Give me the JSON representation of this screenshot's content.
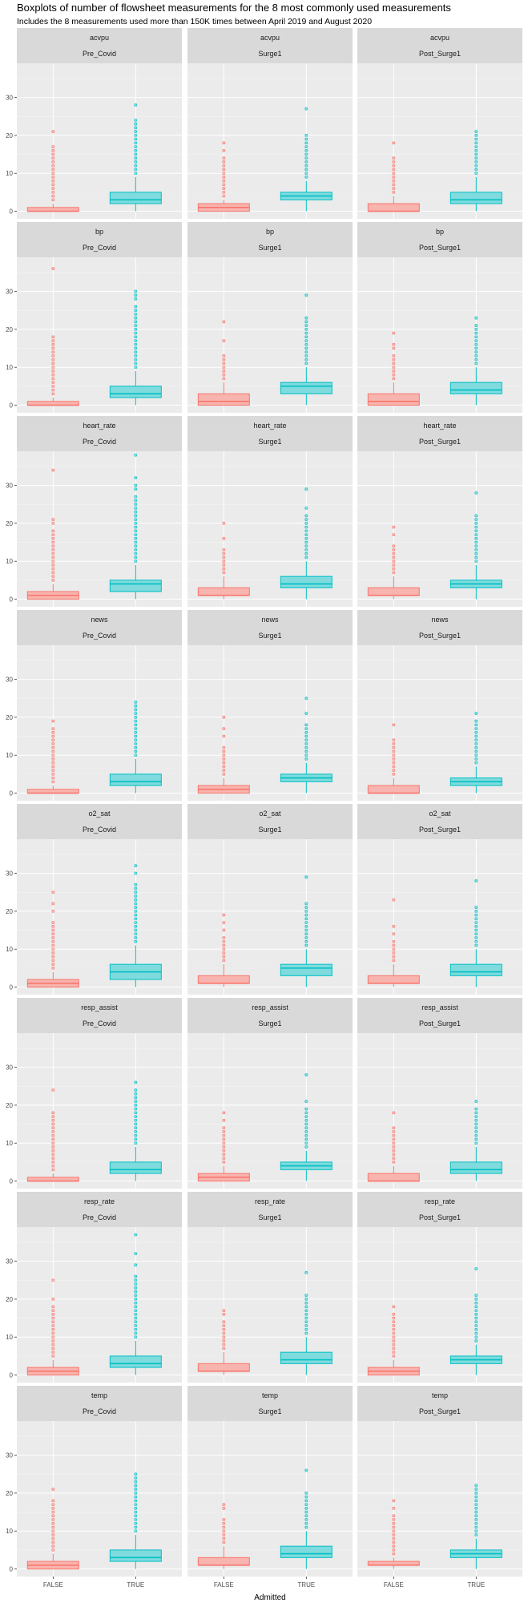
{
  "chart_data": {
    "type": "boxplot",
    "title": "Boxplots of number of flowsheet measurements for the 8 most commonly used measurements",
    "subtitle": "Includes the 8 measurements used more than 150K times between April 2019 and August 2020",
    "xlabel": "Admitted",
    "ylabel": "",
    "categories": [
      "FALSE",
      "TRUE"
    ],
    "y_ticks": [
      0,
      10,
      20,
      30
    ],
    "ylim": [
      -2,
      39
    ],
    "colors": {
      "FALSE": "#F8766D",
      "TRUE": "#00BFC4"
    },
    "facet_rows": [
      "acvpu",
      "bp",
      "heart_rate",
      "news",
      "o2_sat",
      "resp_assist",
      "resp_rate",
      "temp"
    ],
    "facet_cols": [
      "Pre_Covid",
      "Surge1",
      "Post_Surge1"
    ],
    "panels": [
      {
        "measurement": "acvpu",
        "period": "Pre_Covid",
        "false": [
          0,
          0,
          0,
          1,
          2
        ],
        "false_outliers": [
          3,
          4,
          5,
          6,
          7,
          8,
          9,
          10,
          11,
          12,
          13,
          14,
          15,
          16,
          17,
          21
        ],
        "true": [
          0,
          2,
          3,
          5,
          9
        ],
        "true_outliers": [
          10,
          11,
          12,
          13,
          14,
          15,
          16,
          17,
          18,
          19,
          20,
          21,
          22,
          23,
          24,
          28
        ]
      },
      {
        "measurement": "acvpu",
        "period": "Surge1",
        "false": [
          0,
          0,
          1,
          2,
          3
        ],
        "false_outliers": [
          4,
          5,
          6,
          7,
          8,
          9,
          10,
          11,
          12,
          13,
          14,
          16,
          18
        ],
        "true": [
          0,
          3,
          4,
          5,
          8
        ],
        "true_outliers": [
          9,
          10,
          11,
          12,
          13,
          14,
          15,
          16,
          17,
          18,
          19,
          20,
          27
        ]
      },
      {
        "measurement": "acvpu",
        "period": "Post_Surge1",
        "false": [
          0,
          0,
          0,
          2,
          4
        ],
        "false_outliers": [
          5,
          6,
          7,
          8,
          9,
          10,
          11,
          12,
          13,
          14,
          18
        ],
        "true": [
          0,
          2,
          3,
          5,
          9
        ],
        "true_outliers": [
          10,
          11,
          12,
          13,
          14,
          15,
          16,
          17,
          18,
          19,
          20,
          21
        ]
      },
      {
        "measurement": "bp",
        "period": "Pre_Covid",
        "false": [
          0,
          0,
          0,
          1,
          2
        ],
        "false_outliers": [
          3,
          4,
          5,
          6,
          7,
          8,
          9,
          10,
          11,
          12,
          13,
          14,
          15,
          16,
          17,
          18,
          36
        ],
        "true": [
          0,
          2,
          3,
          5,
          9
        ],
        "true_outliers": [
          10,
          11,
          12,
          13,
          14,
          15,
          16,
          17,
          18,
          19,
          20,
          21,
          22,
          23,
          24,
          25,
          26,
          28,
          29,
          30
        ]
      },
      {
        "measurement": "bp",
        "period": "Surge1",
        "false": [
          0,
          0,
          1,
          3,
          6
        ],
        "false_outliers": [
          7,
          8,
          9,
          10,
          11,
          12,
          13,
          17,
          22
        ],
        "true": [
          0,
          3,
          5,
          6,
          10
        ],
        "true_outliers": [
          11,
          12,
          13,
          14,
          15,
          16,
          17,
          18,
          19,
          20,
          21,
          22,
          23,
          29
        ]
      },
      {
        "measurement": "bp",
        "period": "Post_Surge1",
        "false": [
          0,
          0,
          1,
          3,
          6
        ],
        "false_outliers": [
          7,
          8,
          9,
          10,
          11,
          12,
          13,
          15,
          16,
          19
        ],
        "true": [
          0,
          3,
          4,
          6,
          10
        ],
        "true_outliers": [
          11,
          12,
          13,
          14,
          15,
          16,
          17,
          18,
          19,
          20,
          21,
          23
        ]
      },
      {
        "measurement": "heart_rate",
        "period": "Pre_Covid",
        "false": [
          0,
          0,
          1,
          2,
          4
        ],
        "false_outliers": [
          5,
          6,
          7,
          8,
          9,
          10,
          11,
          12,
          13,
          14,
          15,
          16,
          17,
          18,
          20,
          21,
          34
        ],
        "true": [
          0,
          2,
          4,
          5,
          9
        ],
        "true_outliers": [
          10,
          11,
          12,
          13,
          14,
          15,
          16,
          17,
          18,
          19,
          20,
          21,
          22,
          23,
          24,
          25,
          26,
          27,
          29,
          30,
          32,
          38
        ]
      },
      {
        "measurement": "heart_rate",
        "period": "Surge1",
        "false": [
          0,
          1,
          1,
          3,
          6
        ],
        "false_outliers": [
          7,
          8,
          9,
          10,
          11,
          12,
          13,
          16,
          20
        ],
        "true": [
          0,
          3,
          4,
          6,
          10
        ],
        "true_outliers": [
          11,
          12,
          13,
          14,
          15,
          16,
          17,
          18,
          19,
          20,
          21,
          22,
          24,
          29
        ]
      },
      {
        "measurement": "heart_rate",
        "period": "Post_Surge1",
        "false": [
          0,
          1,
          1,
          3,
          6
        ],
        "false_outliers": [
          7,
          8,
          9,
          10,
          11,
          12,
          13,
          14,
          17,
          19
        ],
        "true": [
          0,
          3,
          4,
          5,
          9
        ],
        "true_outliers": [
          10,
          11,
          12,
          13,
          14,
          15,
          16,
          17,
          18,
          19,
          20,
          21,
          22,
          28
        ]
      },
      {
        "measurement": "news",
        "period": "Pre_Covid",
        "false": [
          0,
          0,
          0,
          1,
          2
        ],
        "false_outliers": [
          3,
          4,
          5,
          6,
          7,
          8,
          9,
          10,
          11,
          12,
          13,
          14,
          15,
          16,
          17,
          19
        ],
        "true": [
          0,
          2,
          3,
          5,
          9
        ],
        "true_outliers": [
          10,
          11,
          12,
          13,
          14,
          15,
          16,
          17,
          18,
          19,
          20,
          21,
          22,
          23,
          24
        ]
      },
      {
        "measurement": "news",
        "period": "Surge1",
        "false": [
          0,
          0,
          1,
          2,
          4
        ],
        "false_outliers": [
          5,
          6,
          7,
          8,
          9,
          10,
          11,
          12,
          15,
          17,
          20
        ],
        "true": [
          0,
          3,
          4,
          5,
          8
        ],
        "true_outliers": [
          9,
          10,
          11,
          12,
          13,
          14,
          15,
          16,
          17,
          18,
          21,
          25
        ]
      },
      {
        "measurement": "news",
        "period": "Post_Surge1",
        "false": [
          0,
          0,
          0,
          2,
          4
        ],
        "false_outliers": [
          5,
          6,
          7,
          8,
          9,
          10,
          11,
          12,
          13,
          14,
          18
        ],
        "true": [
          0,
          2,
          3,
          4,
          7
        ],
        "true_outliers": [
          8,
          9,
          10,
          11,
          12,
          13,
          14,
          15,
          16,
          17,
          18,
          19,
          21
        ]
      },
      {
        "measurement": "o2_sat",
        "period": "Pre_Covid",
        "false": [
          0,
          0,
          1,
          2,
          4
        ],
        "false_outliers": [
          5,
          6,
          7,
          8,
          9,
          10,
          11,
          12,
          13,
          14,
          15,
          16,
          17,
          20,
          22,
          25
        ],
        "true": [
          0,
          2,
          4,
          6,
          11
        ],
        "true_outliers": [
          12,
          13,
          14,
          15,
          16,
          17,
          18,
          19,
          20,
          21,
          22,
          23,
          24,
          25,
          26,
          27,
          30,
          32
        ]
      },
      {
        "measurement": "o2_sat",
        "period": "Surge1",
        "false": [
          0,
          1,
          1,
          3,
          6
        ],
        "false_outliers": [
          7,
          8,
          9,
          10,
          11,
          12,
          13,
          15,
          17,
          19
        ],
        "true": [
          0,
          3,
          5,
          6,
          10
        ],
        "true_outliers": [
          11,
          12,
          13,
          14,
          15,
          16,
          17,
          18,
          19,
          20,
          21,
          22,
          29
        ]
      },
      {
        "measurement": "o2_sat",
        "period": "Post_Surge1",
        "false": [
          0,
          1,
          1,
          3,
          6
        ],
        "false_outliers": [
          7,
          8,
          9,
          10,
          11,
          12,
          14,
          16,
          23
        ],
        "true": [
          0,
          3,
          4,
          6,
          10
        ],
        "true_outliers": [
          11,
          12,
          13,
          14,
          15,
          16,
          17,
          18,
          19,
          20,
          21,
          28
        ]
      },
      {
        "measurement": "resp_assist",
        "period": "Pre_Covid",
        "false": [
          0,
          0,
          0,
          1,
          2
        ],
        "false_outliers": [
          3,
          4,
          5,
          6,
          7,
          8,
          9,
          10,
          11,
          12,
          13,
          14,
          15,
          16,
          17,
          18,
          24
        ],
        "true": [
          0,
          2,
          3,
          5,
          9
        ],
        "true_outliers": [
          10,
          11,
          12,
          13,
          14,
          15,
          16,
          17,
          18,
          19,
          20,
          21,
          22,
          23,
          24,
          26
        ]
      },
      {
        "measurement": "resp_assist",
        "period": "Surge1",
        "false": [
          0,
          0,
          1,
          2,
          4
        ],
        "false_outliers": [
          5,
          6,
          7,
          8,
          9,
          10,
          11,
          12,
          13,
          14,
          16,
          18
        ],
        "true": [
          0,
          3,
          4,
          5,
          8
        ],
        "true_outliers": [
          9,
          10,
          11,
          12,
          13,
          14,
          15,
          16,
          17,
          18,
          19,
          21,
          28
        ]
      },
      {
        "measurement": "resp_assist",
        "period": "Post_Surge1",
        "false": [
          0,
          0,
          0,
          2,
          4
        ],
        "false_outliers": [
          5,
          6,
          7,
          8,
          9,
          10,
          11,
          12,
          13,
          14,
          18
        ],
        "true": [
          0,
          2,
          3,
          5,
          9
        ],
        "true_outliers": [
          10,
          11,
          12,
          13,
          14,
          15,
          16,
          17,
          18,
          19,
          21
        ]
      },
      {
        "measurement": "resp_rate",
        "period": "Pre_Covid",
        "false": [
          0,
          0,
          1,
          2,
          4
        ],
        "false_outliers": [
          5,
          6,
          7,
          8,
          9,
          10,
          11,
          12,
          13,
          14,
          15,
          16,
          17,
          18,
          20,
          25
        ],
        "true": [
          0,
          2,
          3,
          5,
          9
        ],
        "true_outliers": [
          10,
          11,
          12,
          13,
          14,
          15,
          16,
          17,
          18,
          19,
          20,
          21,
          22,
          23,
          24,
          25,
          26,
          29,
          32,
          37
        ]
      },
      {
        "measurement": "resp_rate",
        "period": "Surge1",
        "false": [
          0,
          1,
          1,
          3,
          6
        ],
        "false_outliers": [
          7,
          8,
          9,
          10,
          11,
          12,
          13,
          14,
          16,
          17
        ],
        "true": [
          0,
          3,
          4,
          6,
          10
        ],
        "true_outliers": [
          11,
          12,
          13,
          14,
          15,
          16,
          17,
          18,
          19,
          20,
          21,
          27
        ]
      },
      {
        "measurement": "resp_rate",
        "period": "Post_Surge1",
        "false": [
          0,
          0,
          1,
          2,
          4
        ],
        "false_outliers": [
          5,
          6,
          7,
          8,
          9,
          10,
          11,
          12,
          13,
          14,
          15,
          16,
          18
        ],
        "true": [
          0,
          3,
          4,
          5,
          8
        ],
        "true_outliers": [
          9,
          10,
          11,
          12,
          13,
          14,
          15,
          16,
          17,
          18,
          19,
          20,
          21,
          28
        ]
      },
      {
        "measurement": "temp",
        "period": "Pre_Covid",
        "false": [
          0,
          0,
          1,
          2,
          4
        ],
        "false_outliers": [
          5,
          6,
          7,
          8,
          9,
          10,
          11,
          12,
          13,
          14,
          15,
          16,
          17,
          18,
          21
        ],
        "true": [
          0,
          2,
          3,
          5,
          9
        ],
        "true_outliers": [
          10,
          11,
          12,
          13,
          14,
          15,
          16,
          17,
          18,
          19,
          20,
          21,
          22,
          23,
          24,
          25
        ]
      },
      {
        "measurement": "temp",
        "period": "Surge1",
        "false": [
          0,
          1,
          1,
          3,
          6
        ],
        "false_outliers": [
          7,
          8,
          9,
          10,
          11,
          12,
          13,
          16,
          17
        ],
        "true": [
          0,
          3,
          4,
          6,
          10
        ],
        "true_outliers": [
          11,
          12,
          13,
          14,
          15,
          16,
          17,
          18,
          19,
          20,
          26
        ]
      },
      {
        "measurement": "temp",
        "period": "Post_Surge1",
        "false": [
          0,
          1,
          1,
          2,
          3
        ],
        "false_outliers": [
          4,
          5,
          6,
          7,
          8,
          9,
          10,
          11,
          12,
          13,
          14,
          16,
          18
        ],
        "true": [
          0,
          3,
          4,
          5,
          8
        ],
        "true_outliers": [
          9,
          10,
          11,
          12,
          13,
          14,
          15,
          16,
          17,
          18,
          19,
          20,
          21,
          22
        ]
      }
    ]
  }
}
